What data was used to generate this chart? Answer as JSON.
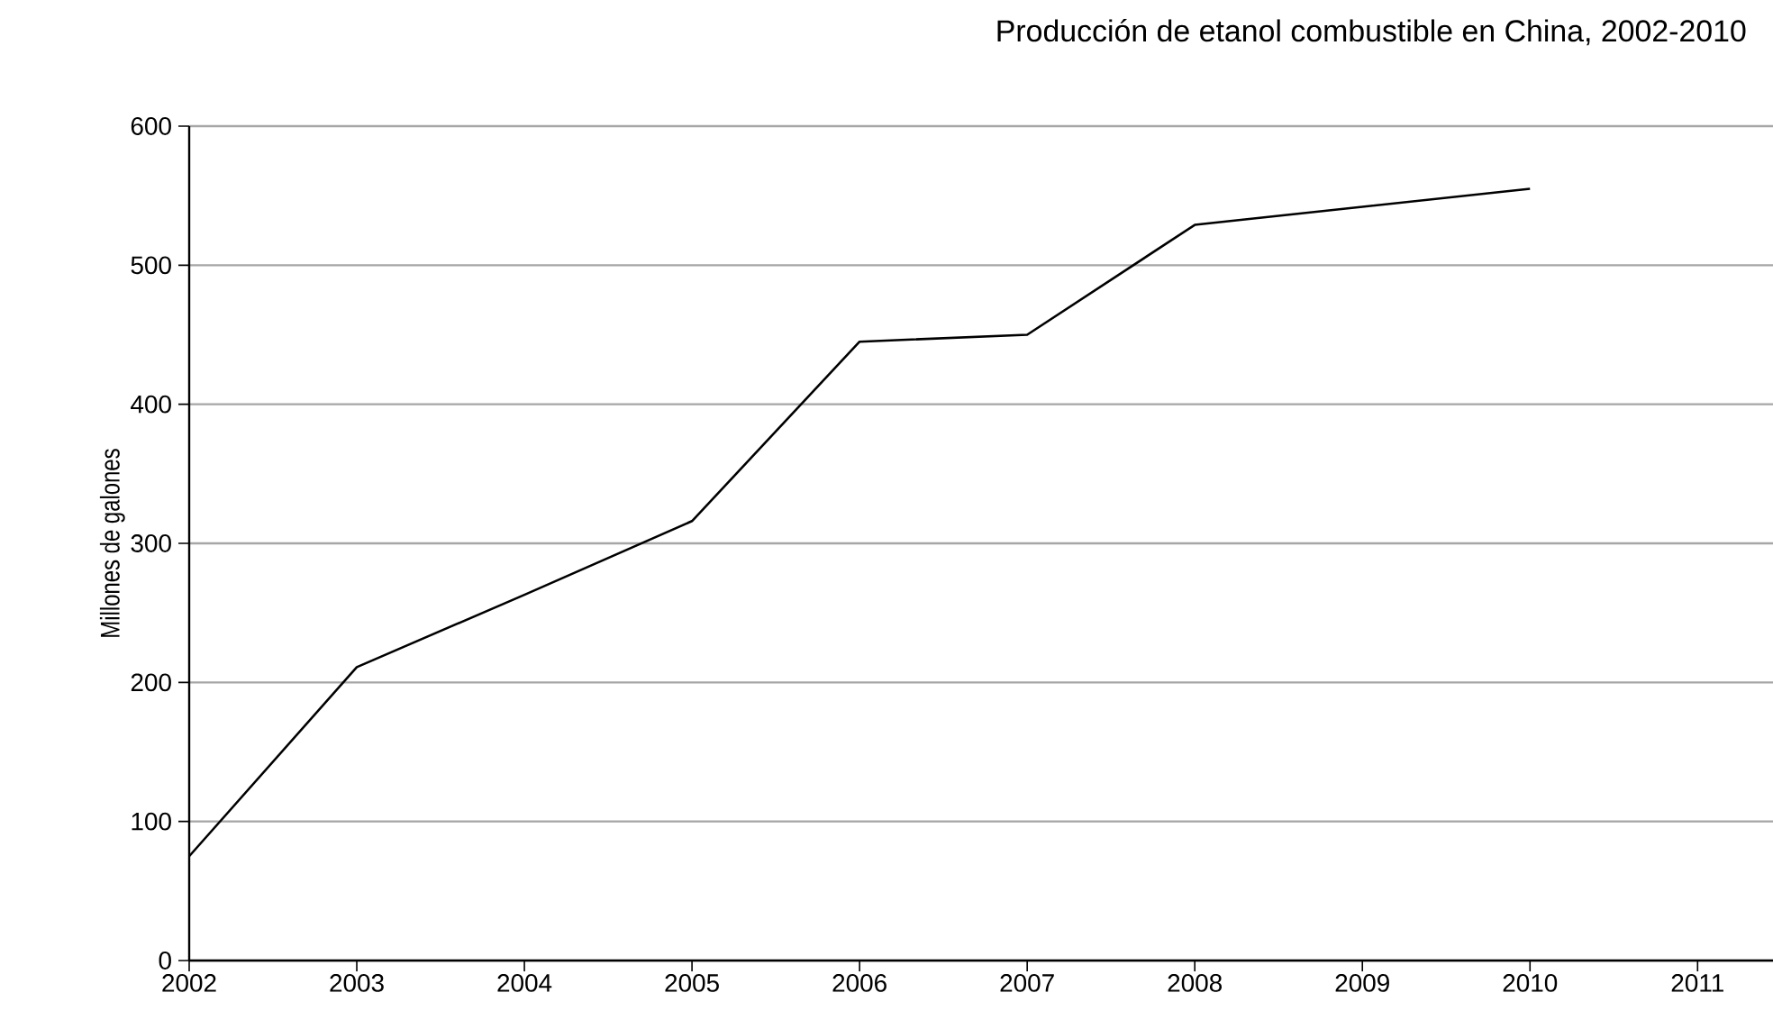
{
  "chart_data": {
    "type": "line",
    "title": "Producción de etanol combustible en China, 2002-2010",
    "ylabel": "Millones de galones",
    "x": [
      2002,
      2003,
      2004,
      2005,
      2006,
      2007,
      2008,
      2009,
      2010
    ],
    "series": [
      {
        "color": "#000000",
        "values": [
          75,
          211,
          263,
          316,
          445,
          450,
          529,
          542,
          555
        ]
      }
    ],
    "xlim": [
      2002,
      2011.45
    ],
    "xticks": [
      2002,
      2003,
      2004,
      2005,
      2006,
      2007,
      2008,
      2009,
      2010,
      2011
    ],
    "ylim": [
      0,
      600
    ],
    "yticks": [
      0,
      100,
      200,
      300,
      400,
      500,
      600
    ],
    "grid": "y",
    "marker": "none",
    "line_style": "solid"
  }
}
